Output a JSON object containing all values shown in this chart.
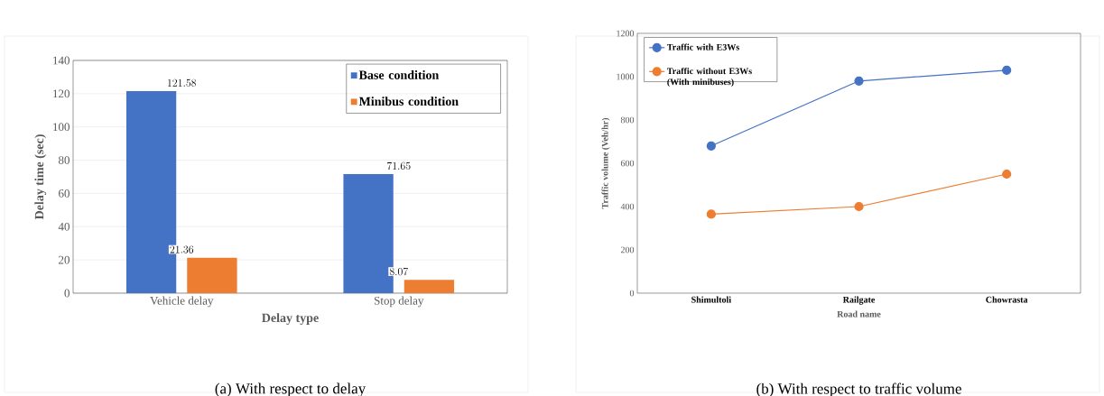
{
  "chart_data": [
    {
      "type": "bar",
      "title": "(a) With respect to delay",
      "xlabel": "Delay type",
      "ylabel": "Delay time (sec)",
      "categories": [
        "Vehicle delay",
        "Stop delay"
      ],
      "series": [
        {
          "name": "Base condition",
          "color": "#4472c4",
          "values": [
            121.58,
            71.65
          ]
        },
        {
          "name": "Minibus condition",
          "color": "#ed7d31",
          "values": [
            21.36,
            8.07
          ]
        }
      ],
      "ylim": [
        0,
        140
      ],
      "yticks": [
        0,
        20,
        40,
        60,
        80,
        100,
        120,
        140
      ],
      "grid": "y",
      "legend": "top right",
      "data_labels": true
    },
    {
      "type": "line",
      "title": "(b) With respect to traffic volume",
      "xlabel": "Road name",
      "ylabel": "Traffic volume (Veh/hr)",
      "categories": [
        "Shimultoli",
        "Railgate",
        "Chowrasta"
      ],
      "series": [
        {
          "name": "Traffic with E3Ws",
          "color": "#4472c4",
          "values": [
            680,
            980,
            1030
          ]
        },
        {
          "name": "Traffic without E3Ws (With minibuses)",
          "color": "#ed7d31",
          "values": [
            365,
            400,
            550
          ]
        }
      ],
      "ylim": [
        0,
        1200
      ],
      "yticks": [
        0,
        200,
        400,
        600,
        800,
        1000,
        1200
      ],
      "legend": "top left",
      "marker": "circle"
    }
  ]
}
